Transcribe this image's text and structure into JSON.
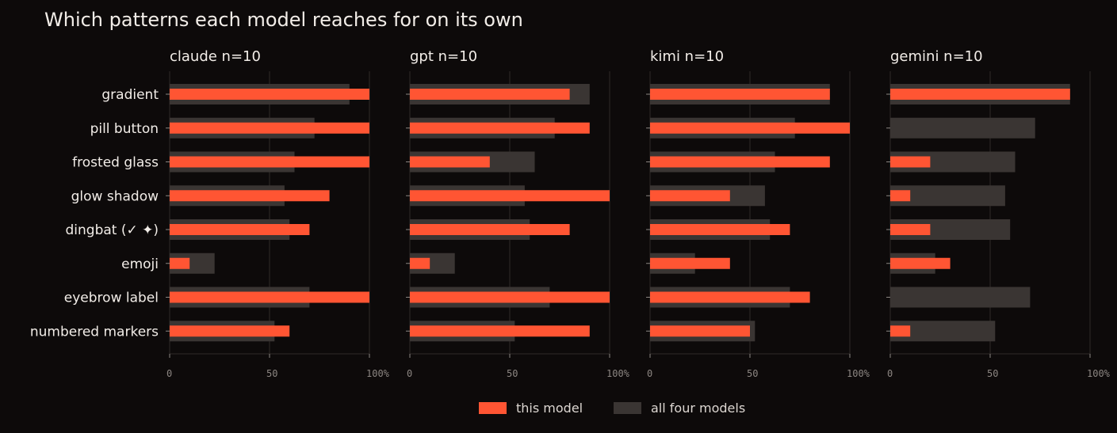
{
  "title": "Which patterns each model reaches for on its own",
  "colors": {
    "background": "#0d0a0a",
    "this_model": "#ff5533",
    "all_models": "#3a3533",
    "grid": "#2f2a28",
    "text": "#f2ede8",
    "tick": "#8c8682"
  },
  "legend": {
    "position": "bottom-center",
    "items": [
      {
        "label": "this model",
        "color": "#ff5533"
      },
      {
        "label": "all four models",
        "color": "#3a3533"
      }
    ]
  },
  "chart_data": {
    "type": "bar",
    "orientation": "horizontal",
    "categories": [
      "gradient",
      "pill button",
      "frosted glass",
      "glow shadow",
      "dingbat (✓ ✦)",
      "emoji",
      "eyebrow label",
      "numbered markers"
    ],
    "xlim": [
      0,
      100
    ],
    "xticks": [
      "0",
      "50",
      "100%"
    ],
    "grid": true,
    "all_four_models": [
      90,
      72.5,
      62.5,
      57.5,
      60,
      22.5,
      70,
      52.5
    ],
    "panels": [
      {
        "model": "claude",
        "n_label": "n=10",
        "this_model": [
          100,
          100,
          100,
          80,
          70,
          10,
          100,
          60
        ]
      },
      {
        "model": "gpt",
        "n_label": "n=10",
        "this_model": [
          80,
          90,
          40,
          100,
          80,
          10,
          100,
          90
        ]
      },
      {
        "model": "kimi",
        "n_label": "n=10",
        "this_model": [
          90,
          100,
          90,
          40,
          70,
          40,
          80,
          50
        ]
      },
      {
        "model": "gemini",
        "n_label": "n=10",
        "this_model": [
          90,
          0,
          20,
          10,
          20,
          30,
          0,
          10
        ]
      }
    ]
  }
}
